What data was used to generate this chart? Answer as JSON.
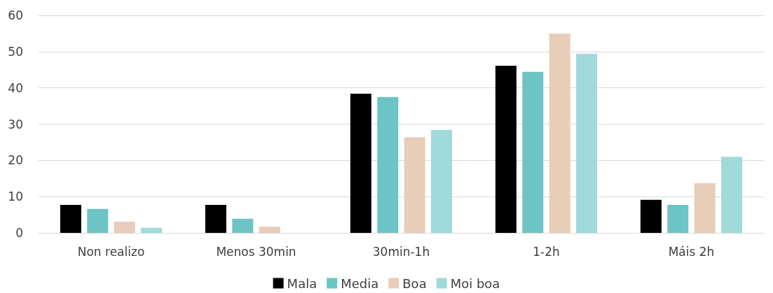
{
  "chart_data": {
    "type": "bar",
    "categories": [
      "Non realizo",
      "Menos 30min",
      "30min-1h",
      "1-2h",
      "Máis 2h"
    ],
    "series": [
      {
        "name": "Mala",
        "color": "#000000",
        "values": [
          7.7,
          7.7,
          38.4,
          46.1,
          9.1
        ]
      },
      {
        "name": "Media",
        "color": "#6cc4c4",
        "values": [
          6.6,
          3.9,
          37.5,
          44.4,
          7.7
        ]
      },
      {
        "name": "Boa",
        "color": "#e8cdb9",
        "values": [
          3.1,
          1.7,
          26.4,
          55.0,
          13.7
        ]
      },
      {
        "name": "Moi boa",
        "color": "#a0dada",
        "values": [
          1.4,
          0,
          28.4,
          49.4,
          21.0
        ]
      }
    ],
    "ylim": [
      0,
      60
    ],
    "yticks": [
      0,
      10,
      20,
      30,
      40,
      50,
      60
    ],
    "grid": "y",
    "legend": "bottom"
  }
}
